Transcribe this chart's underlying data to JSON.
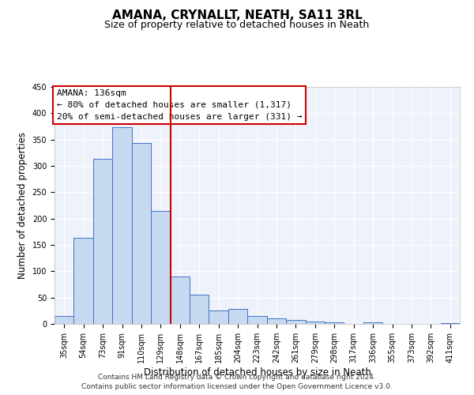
{
  "title": "AMANA, CRYNALLT, NEATH, SA11 3RL",
  "subtitle": "Size of property relative to detached houses in Neath",
  "xlabel": "Distribution of detached houses by size in Neath",
  "ylabel": "Number of detached properties",
  "bin_labels": [
    "35sqm",
    "54sqm",
    "73sqm",
    "91sqm",
    "110sqm",
    "129sqm",
    "148sqm",
    "167sqm",
    "185sqm",
    "204sqm",
    "223sqm",
    "242sqm",
    "261sqm",
    "279sqm",
    "298sqm",
    "317sqm",
    "336sqm",
    "355sqm",
    "373sqm",
    "392sqm",
    "411sqm"
  ],
  "bar_values": [
    15,
    163,
    314,
    374,
    344,
    214,
    90,
    56,
    26,
    29,
    15,
    10,
    7,
    5,
    3,
    0,
    3,
    0,
    0,
    0,
    2
  ],
  "bar_color": "#c6d9f1",
  "bar_edge_color": "#4472c4",
  "vline_x": 5.5,
  "vline_color": "#cc0000",
  "annotation_title": "AMANA: 136sqm",
  "annotation_line1": "← 80% of detached houses are smaller (1,317)",
  "annotation_line2": "20% of semi-detached houses are larger (331) →",
  "annotation_box_color": "#cc0000",
  "ylim": [
    0,
    450
  ],
  "yticks": [
    0,
    50,
    100,
    150,
    200,
    250,
    300,
    350,
    400,
    450
  ],
  "footer_line1": "Contains HM Land Registry data © Crown copyright and database right 2024.",
  "footer_line2": "Contains public sector information licensed under the Open Government Licence v3.0.",
  "bg_color": "#eef2fb",
  "grid_color": "#ffffff",
  "title_fontsize": 11,
  "subtitle_fontsize": 9,
  "axis_label_fontsize": 8.5,
  "tick_fontsize": 7,
  "annotation_fontsize": 8,
  "footer_fontsize": 6.5
}
